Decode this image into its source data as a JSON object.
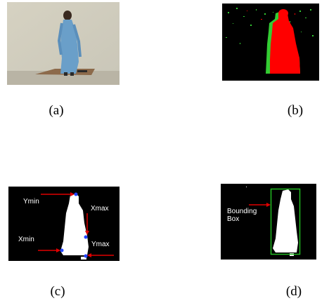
{
  "figure": {
    "panels": [
      {
        "id": "a",
        "caption": "(a)",
        "content": "photo-person-in-room"
      },
      {
        "id": "b",
        "caption": "(b)",
        "content": "motion-mask-red-green"
      },
      {
        "id": "c",
        "caption": "(c)",
        "content": "binary-silhouette-with-extrema",
        "annotations": {
          "ymin": "Ymin",
          "xmax": "Xmax",
          "xmin": "Xmin",
          "ymax": "Ymax"
        }
      },
      {
        "id": "d",
        "caption": "(d)",
        "content": "silhouette-with-bounding-box",
        "annotations": {
          "bbox_line1": "Bounding",
          "bbox_line2": "Box"
        }
      }
    ],
    "colors": {
      "arrow": "#e00000",
      "mask_red": "#ff0000",
      "mask_green": "#33cc33",
      "bbox": "#22bb22",
      "extreme_point": "#2244ff",
      "background": "#000000",
      "silhouette": "#ffffff"
    }
  }
}
